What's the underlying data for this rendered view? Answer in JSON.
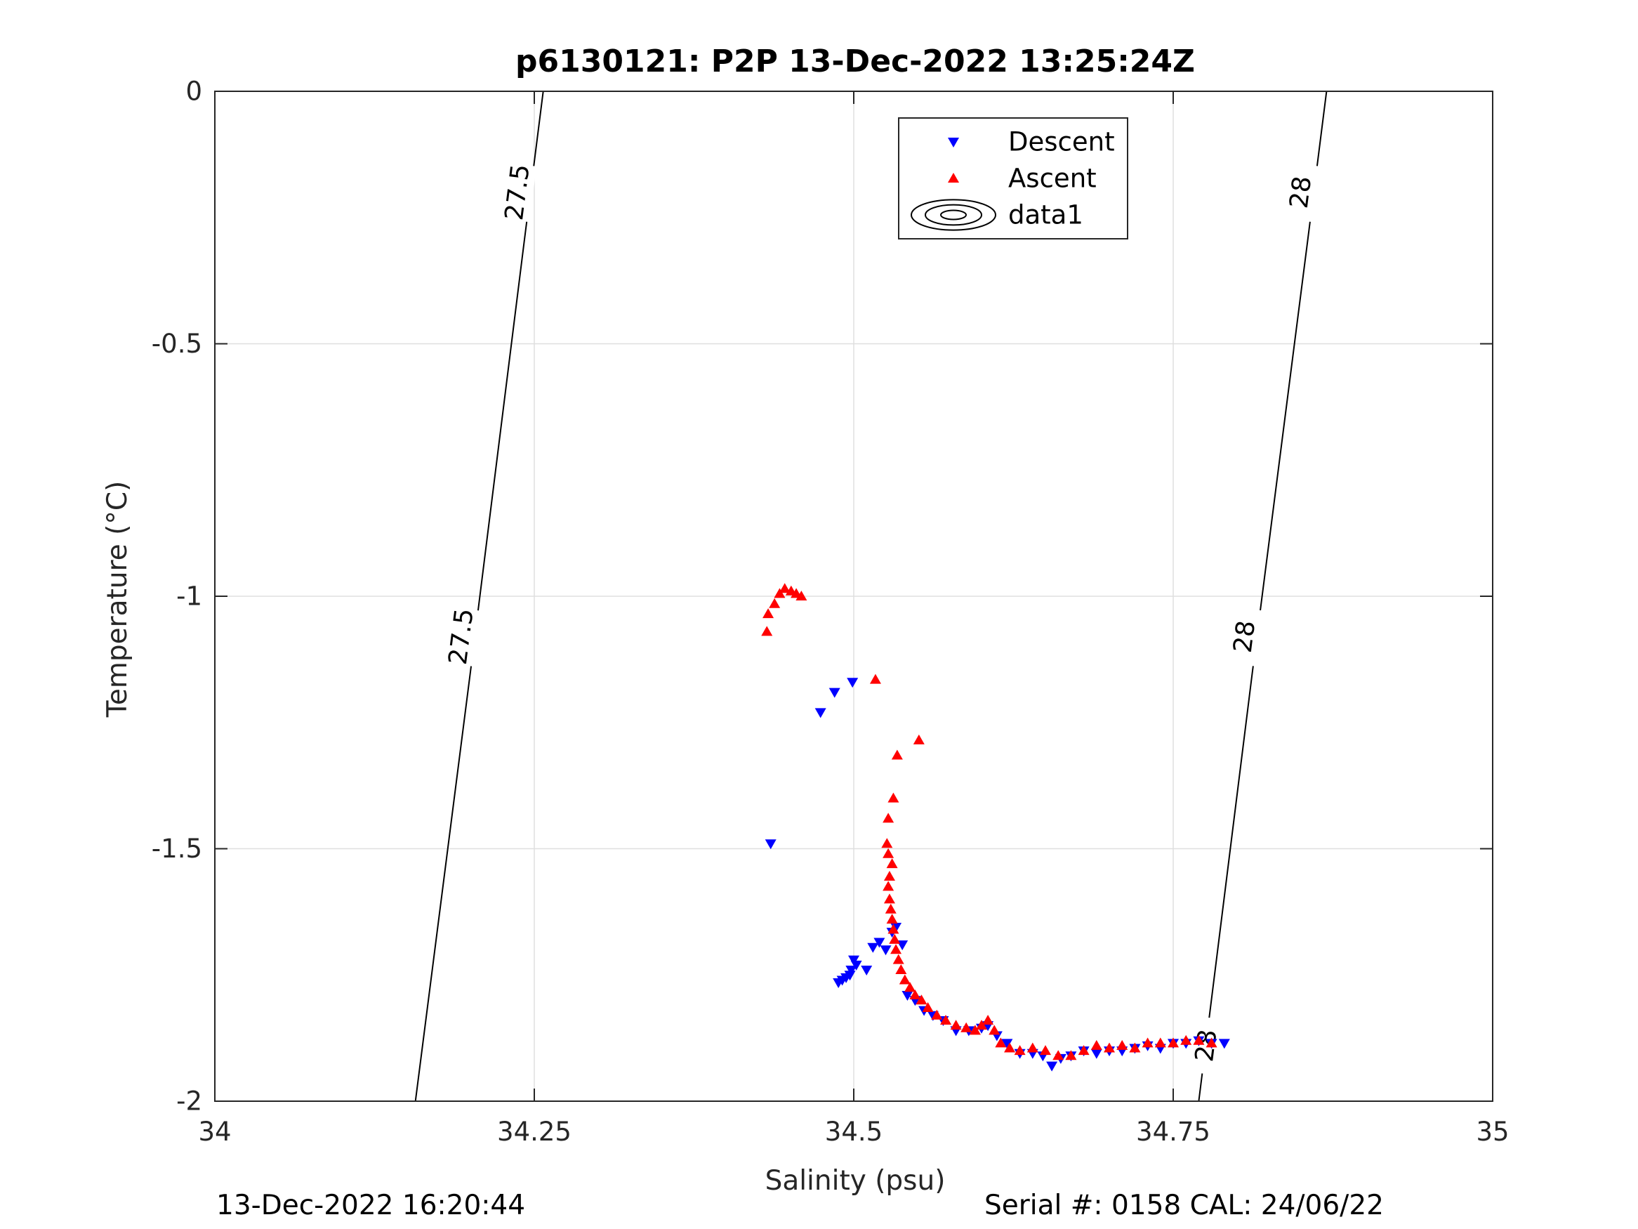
{
  "chart_data": {
    "type": "scatter",
    "title": "p6130121: P2P 13-Dec-2022 13:25:24Z",
    "xlabel": "Salinity (psu)",
    "ylabel": "Temperature (°C)",
    "xlim": [
      34,
      35
    ],
    "ylim": [
      -2,
      0
    ],
    "x_ticks": [
      34,
      34.25,
      34.5,
      34.75,
      35
    ],
    "x_tick_labels": [
      "34",
      "34.25",
      "34.5",
      "34.75",
      "35"
    ],
    "y_ticks": [
      -2,
      -1.5,
      -1,
      -0.5,
      0
    ],
    "y_tick_labels": [
      "-2",
      "-1.5",
      "-1",
      "-0.5",
      "0"
    ],
    "grid": true,
    "legend_position": "top-center",
    "legend": [
      "Descent",
      "Ascent",
      "data1"
    ],
    "series": [
      {
        "name": "Descent",
        "marker": "triangle-down",
        "color": "#0000ff",
        "points": [
          [
            34.499,
            -1.17
          ],
          [
            34.485,
            -1.19
          ],
          [
            34.474,
            -1.23
          ],
          [
            34.435,
            -1.49
          ],
          [
            34.488,
            -1.765
          ],
          [
            34.491,
            -1.76
          ],
          [
            34.494,
            -1.755
          ],
          [
            34.497,
            -1.75
          ],
          [
            34.5,
            -1.72
          ],
          [
            34.502,
            -1.73
          ],
          [
            34.498,
            -1.74
          ],
          [
            34.51,
            -1.74
          ],
          [
            34.515,
            -1.695
          ],
          [
            34.52,
            -1.685
          ],
          [
            34.525,
            -1.7
          ],
          [
            34.53,
            -1.665
          ],
          [
            34.533,
            -1.655
          ],
          [
            34.538,
            -1.69
          ],
          [
            34.542,
            -1.79
          ],
          [
            34.548,
            -1.8
          ],
          [
            34.555,
            -1.82
          ],
          [
            34.562,
            -1.83
          ],
          [
            34.57,
            -1.84
          ],
          [
            34.58,
            -1.86
          ],
          [
            34.59,
            -1.86
          ],
          [
            34.6,
            -1.855
          ],
          [
            34.605,
            -1.85
          ],
          [
            34.612,
            -1.87
          ],
          [
            34.62,
            -1.885
          ],
          [
            34.63,
            -1.905
          ],
          [
            34.64,
            -1.905
          ],
          [
            34.648,
            -1.91
          ],
          [
            34.655,
            -1.93
          ],
          [
            34.662,
            -1.915
          ],
          [
            34.67,
            -1.91
          ],
          [
            34.68,
            -1.9
          ],
          [
            34.69,
            -1.905
          ],
          [
            34.7,
            -1.9
          ],
          [
            34.71,
            -1.9
          ],
          [
            34.72,
            -1.895
          ],
          [
            34.73,
            -1.89
          ],
          [
            34.74,
            -1.895
          ],
          [
            34.75,
            -1.885
          ],
          [
            34.76,
            -1.885
          ],
          [
            34.77,
            -1.88
          ],
          [
            34.78,
            -1.885
          ],
          [
            34.79,
            -1.885
          ]
        ]
      },
      {
        "name": "Ascent",
        "marker": "triangle-up",
        "color": "#ff0000",
        "points": [
          [
            34.432,
            -1.07
          ],
          [
            34.433,
            -1.035
          ],
          [
            34.438,
            -1.015
          ],
          [
            34.442,
            -0.995
          ],
          [
            34.446,
            -0.985
          ],
          [
            34.451,
            -0.99
          ],
          [
            34.455,
            -0.995
          ],
          [
            34.459,
            -1.0
          ],
          [
            34.517,
            -1.165
          ],
          [
            34.551,
            -1.285
          ],
          [
            34.534,
            -1.315
          ],
          [
            34.531,
            -1.4
          ],
          [
            34.527,
            -1.44
          ],
          [
            34.526,
            -1.49
          ],
          [
            34.527,
            -1.51
          ],
          [
            34.53,
            -1.53
          ],
          [
            34.528,
            -1.555
          ],
          [
            34.527,
            -1.575
          ],
          [
            34.528,
            -1.6
          ],
          [
            34.529,
            -1.62
          ],
          [
            34.53,
            -1.64
          ],
          [
            34.531,
            -1.66
          ],
          [
            34.532,
            -1.68
          ],
          [
            34.533,
            -1.7
          ],
          [
            34.535,
            -1.72
          ],
          [
            34.537,
            -1.74
          ],
          [
            34.54,
            -1.76
          ],
          [
            34.544,
            -1.775
          ],
          [
            34.548,
            -1.79
          ],
          [
            34.553,
            -1.8
          ],
          [
            34.558,
            -1.815
          ],
          [
            34.565,
            -1.83
          ],
          [
            34.572,
            -1.84
          ],
          [
            34.58,
            -1.85
          ],
          [
            34.588,
            -1.855
          ],
          [
            34.595,
            -1.86
          ],
          [
            34.6,
            -1.85
          ],
          [
            34.605,
            -1.84
          ],
          [
            34.61,
            -1.86
          ],
          [
            34.615,
            -1.885
          ],
          [
            34.622,
            -1.895
          ],
          [
            34.63,
            -1.9
          ],
          [
            34.64,
            -1.895
          ],
          [
            34.65,
            -1.9
          ],
          [
            34.66,
            -1.91
          ],
          [
            34.67,
            -1.91
          ],
          [
            34.68,
            -1.9
          ],
          [
            34.69,
            -1.89
          ],
          [
            34.7,
            -1.895
          ],
          [
            34.71,
            -1.89
          ],
          [
            34.72,
            -1.895
          ],
          [
            34.73,
            -1.885
          ],
          [
            34.74,
            -1.885
          ],
          [
            34.75,
            -1.885
          ],
          [
            34.76,
            -1.88
          ],
          [
            34.77,
            -1.88
          ],
          [
            34.78,
            -1.885
          ]
        ]
      }
    ],
    "contours": [
      {
        "name": "data1",
        "level": "27.5",
        "points": [
          [
            34.157,
            -2.0
          ],
          [
            34.2,
            -1.15
          ],
          [
            34.242,
            -0.3
          ],
          [
            34.257,
            0.0
          ]
        ],
        "labels": [
          [
            34.193,
            -1.08
          ],
          [
            34.237,
            -0.2
          ]
        ]
      },
      {
        "name": "data1",
        "level": "28",
        "points": [
          [
            34.77,
            -2.0
          ],
          [
            34.812,
            -1.15
          ],
          [
            34.855,
            -0.3
          ],
          [
            34.87,
            0.0
          ]
        ],
        "labels": [
          [
            34.776,
            -1.89
          ],
          [
            34.806,
            -1.08
          ],
          [
            34.85,
            -0.2
          ]
        ]
      }
    ]
  },
  "footer": {
    "timestamp": "13-Dec-2022 16:20:44",
    "serial": "Serial #: 0158  CAL: 24/06/22"
  }
}
